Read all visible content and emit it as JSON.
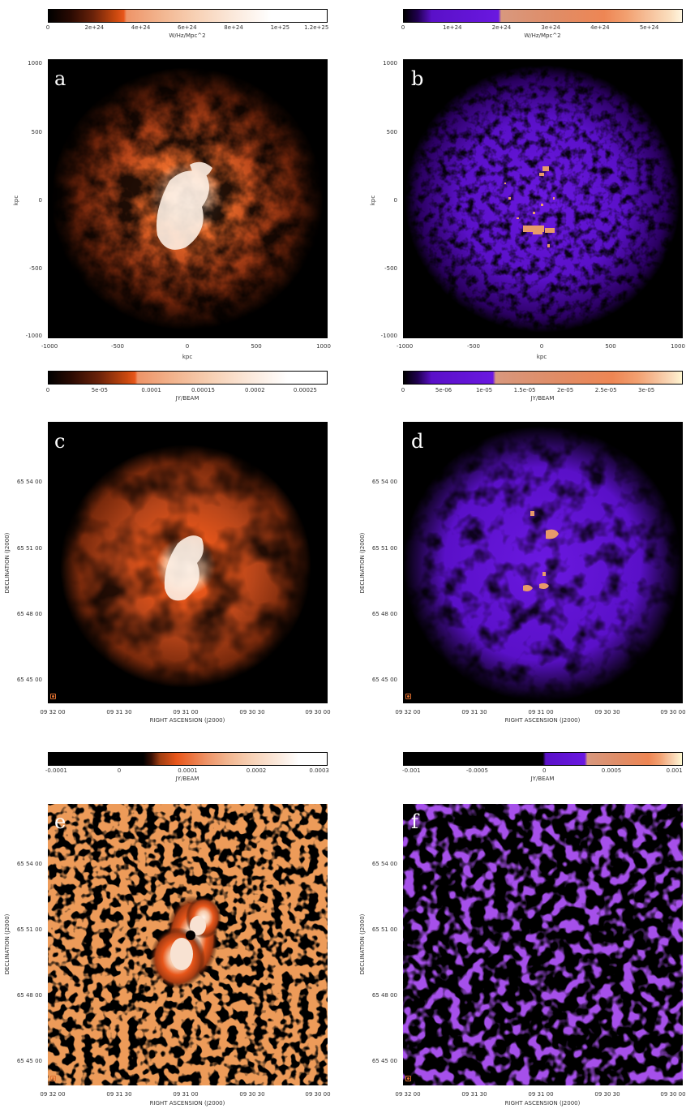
{
  "panels": {
    "a": {
      "letter": "a",
      "cmap": "orange"
    },
    "b": {
      "letter": "b",
      "cmap": "violet"
    },
    "c": {
      "letter": "c",
      "cmap": "orange"
    },
    "d": {
      "letter": "d",
      "cmap": "violet"
    },
    "e": {
      "letter": "e",
      "cmap": "orange"
    },
    "f": {
      "letter": "f",
      "cmap": "violet"
    }
  },
  "colorbars": {
    "a": {
      "ticks": [
        "0",
        "2e+24",
        "4e+24",
        "6e+24",
        "8e+24",
        "1e+25",
        "1.2e+25"
      ],
      "unit": "W/Hz/Mpc^2"
    },
    "b": {
      "ticks": [
        "0",
        "1e+24",
        "2e+24",
        "3e+24",
        "4e+24",
        "5e+24"
      ],
      "unit": "W/Hz/Mpc^2"
    },
    "c": {
      "ticks": [
        "0",
        "5e-05",
        "0.0001",
        "0.00015",
        "0.0002",
        "0.00025"
      ],
      "unit": "JY/BEAM"
    },
    "d": {
      "ticks": [
        "0",
        "5e-06",
        "1e-05",
        "1.5e-05",
        "2e-05",
        "2.5e-05",
        "3e-05"
      ],
      "unit": "JY/BEAM"
    },
    "e": {
      "ticks": [
        "-0.0001",
        "0",
        "0.0001",
        "0.0002",
        "0.0003"
      ],
      "unit": "JY/BEAM"
    },
    "f": {
      "ticks": [
        "-0.001",
        "-0.0005",
        "0",
        "0.0005",
        "0.001"
      ],
      "unit": "JY/BEAM"
    }
  },
  "kpc_axes": {
    "yticks": [
      "1000",
      "500",
      "0",
      "-500",
      "-1000"
    ],
    "xticks": [
      "-1000",
      "-500",
      "0",
      "500",
      "1000"
    ],
    "xlabel": "kpc",
    "ylabel": "kpc"
  },
  "sky_axes": {
    "yticks": [
      "65 54 00",
      "65 51 00",
      "65 48 00",
      "65 45 00"
    ],
    "xticks": [
      "09 32 00",
      "09 31 30",
      "09 31 00",
      "09 30 30",
      "09 30 00"
    ],
    "xlabel": "RIGHT ASCENSION (J2000)",
    "ylabel": "DECLINATION (J2000)"
  },
  "colors": {
    "orange_ramp": [
      "#000000",
      "#3a1004",
      "#7a2a0c",
      "#b84512",
      "#e0581a",
      "#ee9a6a",
      "#f5c8a8",
      "#fbe6d6",
      "#ffffff"
    ],
    "violet_ramp": [
      "#000000",
      "#2a0060",
      "#5a10c8",
      "#6a18e0",
      "#d89a80",
      "#ee8a5a",
      "#f2b080",
      "#fbe0b0",
      "#fffde0"
    ]
  }
}
